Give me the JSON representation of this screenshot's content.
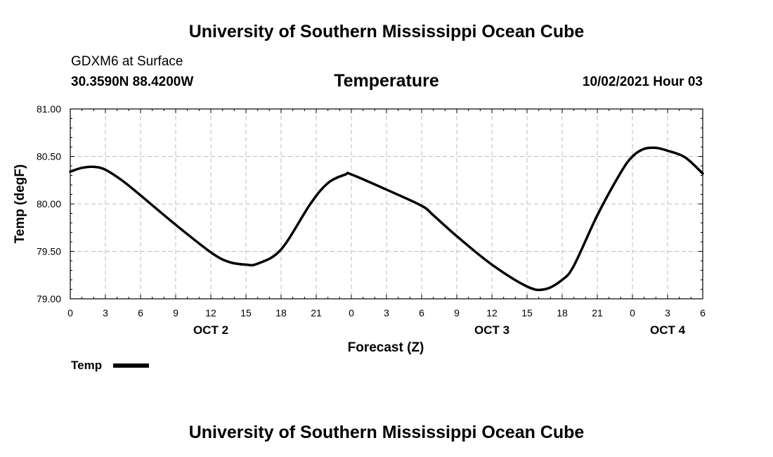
{
  "header": {
    "top_title": "University of Southern Mississippi Ocean Cube",
    "station": "GDXM6 at Surface",
    "coords": "30.3590N  88.4200W",
    "chart_title": "Temperature",
    "datetime": "10/02/2021 Hour 03"
  },
  "legend": {
    "label": "Temp"
  },
  "footer": {
    "title": "University of Southern Mississippi Ocean Cube"
  },
  "chart_data": {
    "type": "line",
    "title": "Temperature",
    "xlabel": "Forecast (Z)",
    "ylabel": "Temp (degF)",
    "ylim": [
      79.0,
      81.0
    ],
    "xlim": [
      0,
      54
    ],
    "x_unit": "forecast hours from 00Z Oct 2",
    "yticks": [
      "79.00",
      "79.50",
      "80.00",
      "80.50",
      "81.00"
    ],
    "ytick_values": [
      79.0,
      79.5,
      80.0,
      80.5,
      81.0
    ],
    "xtick_hours": [
      0,
      3,
      6,
      9,
      12,
      15,
      18,
      21,
      24,
      27,
      30,
      33,
      36,
      39,
      42,
      45,
      48,
      51,
      54
    ],
    "xticks": [
      "0",
      "3",
      "6",
      "9",
      "12",
      "15",
      "18",
      "21",
      "0",
      "3",
      "6",
      "9",
      "12",
      "15",
      "18",
      "21",
      "0",
      "3",
      "6"
    ],
    "day_labels": [
      {
        "label": "OCT 2",
        "hour": 12
      },
      {
        "label": "OCT 3",
        "hour": 36
      },
      {
        "label": "OCT 4",
        "hour": 51
      }
    ],
    "grid": true,
    "legend_position": "bottom-left",
    "series": [
      {
        "name": "Temp",
        "color": "#000000",
        "x": [
          0,
          1,
          2,
          3,
          4.5,
          6,
          9,
          12,
          13.5,
          15,
          16,
          18,
          20.5,
          22,
          23.5,
          24,
          27,
          30,
          31,
          33,
          36,
          39,
          40.5,
          42,
          43,
          45,
          47,
          48,
          49,
          50,
          51,
          52.5,
          54
        ],
        "values": [
          80.34,
          80.38,
          80.39,
          80.36,
          80.24,
          80.09,
          79.78,
          79.49,
          79.39,
          79.36,
          79.37,
          79.52,
          80.0,
          80.22,
          80.31,
          80.31,
          80.15,
          79.98,
          79.88,
          79.66,
          79.36,
          79.13,
          79.1,
          79.2,
          79.35,
          79.88,
          80.33,
          80.5,
          80.58,
          80.59,
          80.56,
          80.49,
          80.32
        ]
      }
    ]
  }
}
